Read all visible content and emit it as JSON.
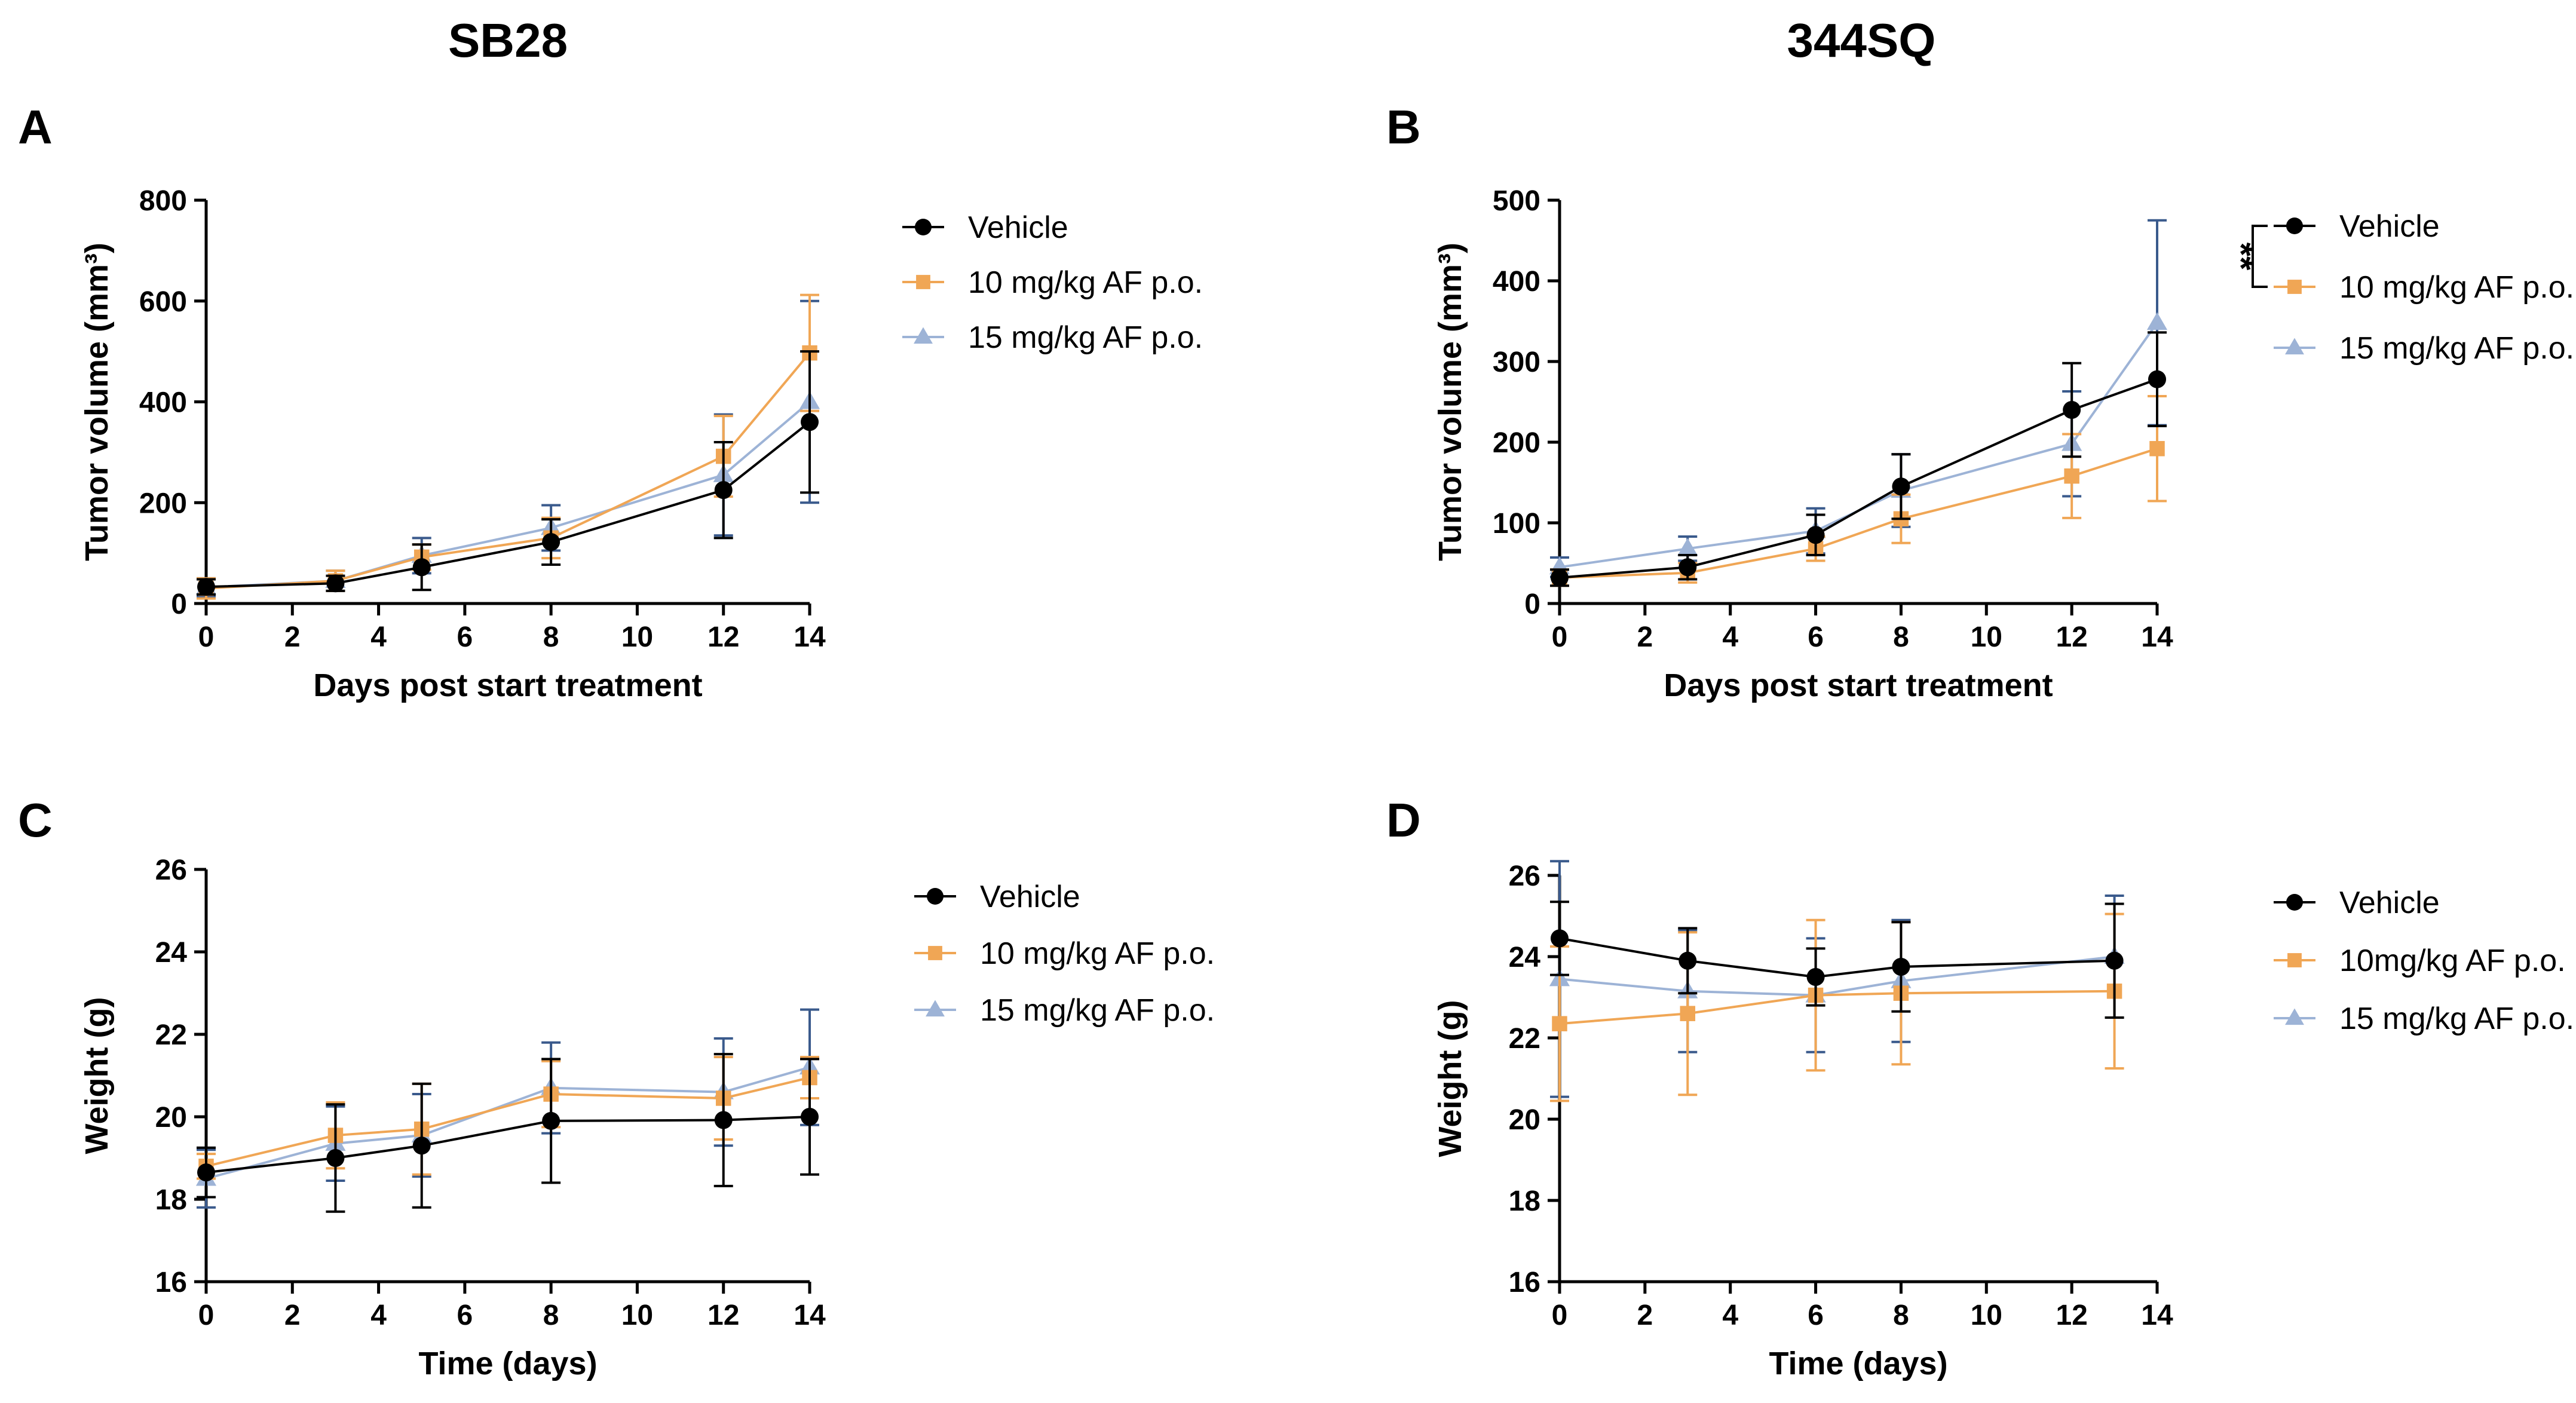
{
  "figure": {
    "column_titles": [
      "SB28",
      "344SQ"
    ]
  },
  "colors": {
    "vehicle": "#000000",
    "af10": "#F0A655",
    "af15": "#9DB3D6",
    "af15_error": "#3A5A8C",
    "axis": "#000000"
  },
  "chart_data": [
    {
      "panel": "A",
      "type": "line",
      "xlabel": "Days post start treatment",
      "ylabel": "Tumor volume (mm³)",
      "xlim": [
        0,
        14
      ],
      "ylim": [
        0,
        800
      ],
      "xticks": [
        0,
        2,
        4,
        6,
        8,
        10,
        12,
        14
      ],
      "yticks": [
        0,
        200,
        400,
        600,
        800
      ],
      "legend": [
        "Vehicle",
        "10 mg/kg AF p.o.",
        "15 mg/kg AF p.o."
      ],
      "series": [
        {
          "name": "Vehicle",
          "marker": "circle",
          "x": [
            0,
            3,
            5,
            8,
            12,
            14
          ],
          "y": [
            33,
            40,
            72,
            122,
            225,
            360
          ],
          "err": [
            15,
            15,
            45,
            45,
            95,
            140
          ]
        },
        {
          "name": "10 mg/kg AF p.o.",
          "marker": "square",
          "x": [
            0,
            3,
            5,
            8,
            12,
            14
          ],
          "y": [
            30,
            45,
            92,
            130,
            292,
            497
          ],
          "err": [
            20,
            20,
            25,
            40,
            80,
            115
          ]
        },
        {
          "name": "15 mg/kg AF p.o.",
          "marker": "triangle",
          "x": [
            0,
            3,
            5,
            8,
            12,
            14
          ],
          "y": [
            32,
            45,
            95,
            150,
            255,
            400
          ],
          "err": [
            18,
            20,
            35,
            45,
            120,
            200
          ]
        }
      ]
    },
    {
      "panel": "B",
      "type": "line",
      "xlabel": "Days post start treatment",
      "ylabel": "Tumor volume (mm³)",
      "xlim": [
        0,
        14
      ],
      "ylim": [
        0,
        500
      ],
      "xticks": [
        0,
        2,
        4,
        6,
        8,
        10,
        12,
        14
      ],
      "yticks": [
        0,
        100,
        200,
        300,
        400,
        500
      ],
      "legend": [
        "Vehicle",
        "10 mg/kg AF p.o.",
        "15 mg/kg AF p.o."
      ],
      "annotation": "**",
      "series": [
        {
          "name": "Vehicle",
          "marker": "circle",
          "x": [
            0,
            3,
            6,
            8,
            12,
            14
          ],
          "y": [
            32,
            45,
            85,
            145,
            240,
            278
          ],
          "err": [
            10,
            15,
            25,
            40,
            58,
            58
          ]
        },
        {
          "name": "10 mg/kg AF p.o.",
          "marker": "square",
          "x": [
            0,
            3,
            6,
            8,
            12,
            14
          ],
          "y": [
            32,
            38,
            68,
            105,
            158,
            192
          ],
          "err": [
            10,
            12,
            15,
            30,
            52,
            65
          ]
        },
        {
          "name": "15 mg/kg AF p.o.",
          "marker": "triangle",
          "x": [
            0,
            3,
            6,
            8,
            12,
            14
          ],
          "y": [
            45,
            68,
            90,
            140,
            198,
            348
          ],
          "err": [
            12,
            15,
            28,
            45,
            65,
            127
          ]
        }
      ]
    },
    {
      "panel": "C",
      "type": "line",
      "xlabel": "Time (days)",
      "ylabel": "Weight (g)",
      "xlim": [
        0,
        14
      ],
      "ylim": [
        16,
        26
      ],
      "xticks": [
        0,
        2,
        4,
        6,
        8,
        10,
        12,
        14
      ],
      "yticks": [
        16,
        18,
        20,
        22,
        24,
        26
      ],
      "legend": [
        "Vehicle",
        "10 mg/kg AF p.o.",
        "15 mg/kg AF p.o."
      ],
      "series": [
        {
          "name": "Vehicle",
          "marker": "circle",
          "x": [
            0,
            3,
            5,
            8,
            12,
            14
          ],
          "y": [
            18.65,
            19.0,
            19.3,
            19.9,
            19.92,
            20.0
          ],
          "err": [
            0.6,
            1.3,
            1.5,
            1.5,
            1.6,
            1.4
          ]
        },
        {
          "name": "10 mg/kg AF p.o.",
          "marker": "square",
          "x": [
            0,
            3,
            5,
            8,
            12,
            14
          ],
          "y": [
            18.8,
            19.55,
            19.7,
            20.55,
            20.45,
            20.95
          ],
          "err": [
            0.3,
            0.8,
            1.1,
            0.8,
            1.0,
            0.5
          ]
        },
        {
          "name": "15 mg/kg AF p.o.",
          "marker": "triangle",
          "x": [
            0,
            3,
            5,
            8,
            12,
            14
          ],
          "y": [
            18.5,
            19.35,
            19.55,
            20.7,
            20.6,
            21.2
          ],
          "err": [
            0.7,
            0.9,
            1.0,
            1.1,
            1.3,
            1.4
          ]
        }
      ]
    },
    {
      "panel": "D",
      "type": "line",
      "xlabel": "Time (days)",
      "ylabel": "Weight (g)",
      "xlim": [
        0,
        14
      ],
      "ylim": [
        16,
        26
      ],
      "xticks": [
        0,
        2,
        4,
        6,
        8,
        10,
        12,
        14
      ],
      "yticks": [
        16,
        18,
        20,
        22,
        24,
        26
      ],
      "legend": [
        "Vehicle",
        "10mg/kg AF p.o.",
        "15 mg/kg AF p.o."
      ],
      "series": [
        {
          "name": "Vehicle",
          "marker": "circle",
          "x": [
            0,
            3,
            6,
            8,
            13
          ],
          "y": [
            24.45,
            23.9,
            23.5,
            23.75,
            23.9
          ],
          "err": [
            0.9,
            0.8,
            0.7,
            1.1,
            1.4
          ]
        },
        {
          "name": "10mg/kg AF p.o.",
          "marker": "square",
          "x": [
            0,
            3,
            6,
            8,
            13
          ],
          "y": [
            22.35,
            22.6,
            23.05,
            23.1,
            23.15
          ],
          "err": [
            1.9,
            2.0,
            1.85,
            1.75,
            1.9
          ]
        },
        {
          "name": "15 mg/kg AF p.o.",
          "marker": "triangle",
          "x": [
            0,
            3,
            6,
            8,
            13
          ],
          "y": [
            23.45,
            23.15,
            23.05,
            23.4,
            24.0
          ],
          "err": [
            2.9,
            1.5,
            1.4,
            1.5,
            1.5
          ]
        }
      ]
    }
  ]
}
